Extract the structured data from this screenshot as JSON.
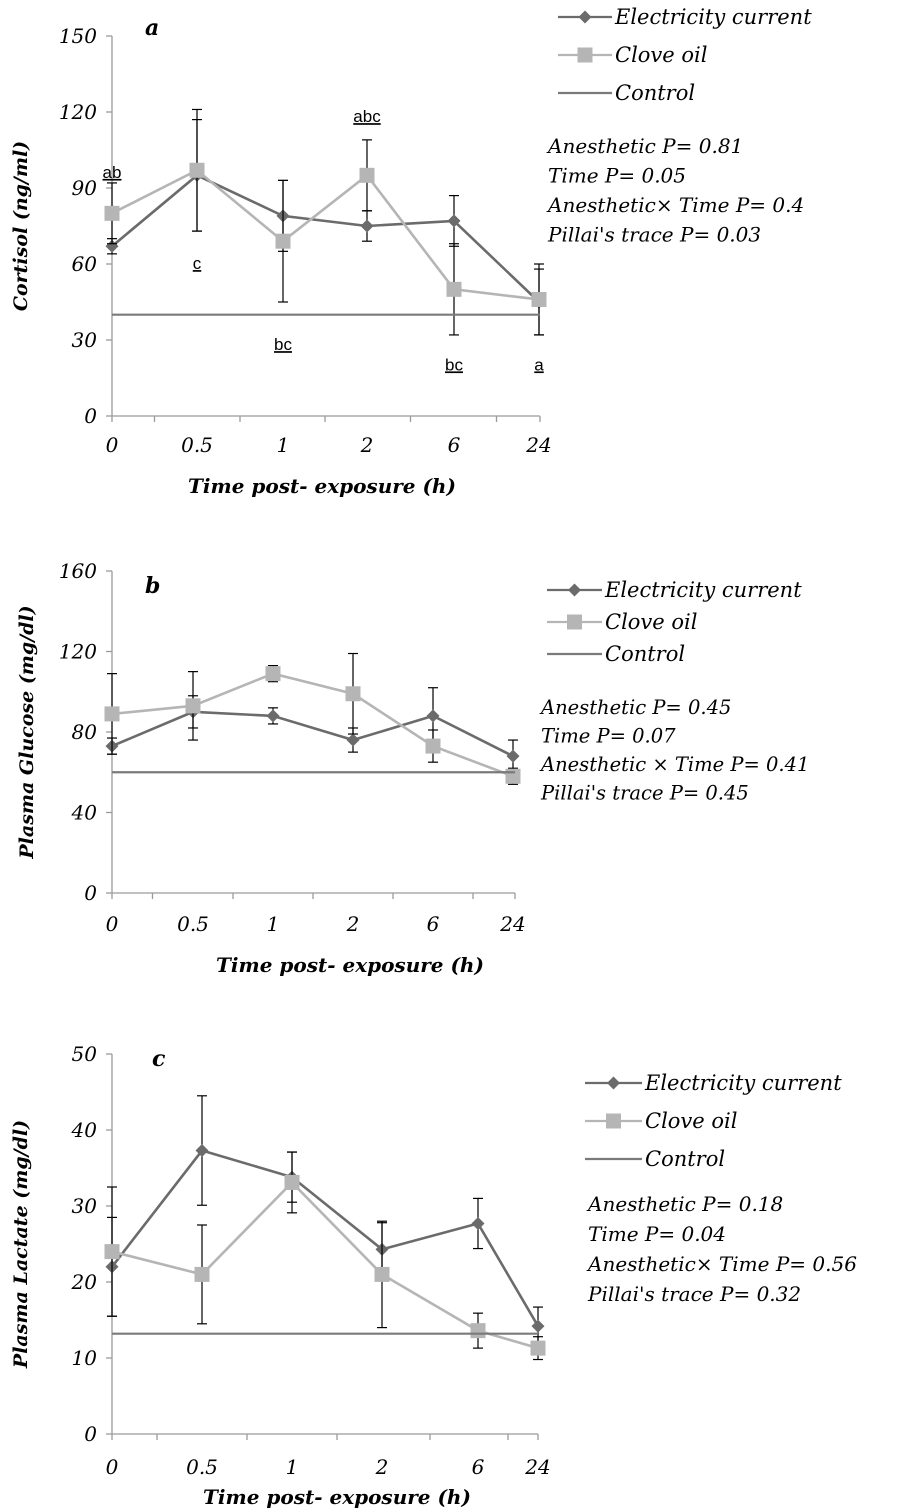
{
  "colors": {
    "electricity": "#6b6b6b",
    "clove": "#b5b5b5",
    "control": "#7a7a7a",
    "axis": "#9a9a9a",
    "text": "#000000"
  },
  "x_axis_label": "Time post- exposure (h)",
  "chart_data": [
    {
      "type": "line",
      "panel_letter": "a",
      "ylabel": "Cortisol (ng/ml)",
      "xlabel": "Time post- exposure (h)",
      "categories": [
        "0",
        "0.5",
        "1",
        "2",
        "6",
        "24"
      ],
      "ylim": [
        0,
        150
      ],
      "yticks": [
        0,
        30,
        60,
        90,
        120,
        150
      ],
      "series": [
        {
          "name": "Electricity current",
          "marker": "diamond",
          "values": [
            67,
            95,
            79,
            75,
            77,
            45
          ],
          "error": [
            3,
            22,
            14,
            6,
            10,
            13
          ]
        },
        {
          "name": "Clove oil",
          "marker": "square",
          "values": [
            80,
            97,
            69,
            95,
            50,
            46
          ],
          "error": [
            12,
            24,
            24,
            14,
            18,
            14
          ]
        },
        {
          "name": "Control",
          "marker": "none",
          "constant": 40
        }
      ],
      "letters": [
        {
          "text": "ab",
          "x": "0",
          "y": 94,
          "style": "wavy"
        },
        {
          "text": "c",
          "x": "0.5",
          "y": 58,
          "style": "wavy-green"
        },
        {
          "text": "bc",
          "x": "1",
          "y": 26,
          "style": "wavy"
        },
        {
          "text": "abc",
          "x": "2",
          "y": 116,
          "style": "wavy"
        },
        {
          "text": "bc",
          "x": "6",
          "y": 18,
          "style": "wavy"
        },
        {
          "text": "a",
          "x": "24",
          "y": 18,
          "style": "wavy-green"
        }
      ],
      "stats": [
        "Anesthetic P= 0.81",
        "Time P= 0.05",
        "Anesthetic× Time P= 0.4",
        "Pillai's trace P= 0.03"
      ]
    },
    {
      "type": "line",
      "panel_letter": "b",
      "ylabel": "Plasma Glucose (mg/dl)",
      "xlabel": "Time post- exposure (h)",
      "categories": [
        "0",
        "0.5",
        "1",
        "2",
        "6",
        "24"
      ],
      "ylim": [
        0,
        160
      ],
      "yticks": [
        0,
        40,
        80,
        120,
        160
      ],
      "series": [
        {
          "name": "Electricity current",
          "marker": "diamond",
          "values": [
            73,
            90,
            88,
            76,
            88,
            68
          ],
          "error": [
            4,
            8,
            4,
            6,
            14,
            8
          ]
        },
        {
          "name": "Clove oil",
          "marker": "square",
          "values": [
            89,
            93,
            109,
            99,
            73,
            58
          ],
          "error": [
            20,
            17,
            4,
            20,
            8,
            4
          ]
        },
        {
          "name": "Control",
          "marker": "none",
          "constant": 60
        }
      ],
      "stats": [
        "Anesthetic P= 0.45",
        "Time P= 0.07",
        "Anesthetic × Time P= 0.41",
        "Pillai's trace P= 0.45"
      ]
    },
    {
      "type": "line",
      "panel_letter": "c",
      "ylabel": "Plasma Lactate (mg/dl)",
      "xlabel": "Time post- exposure (h)",
      "categories": [
        "0",
        "0.5",
        "1",
        "2",
        "6",
        "24"
      ],
      "ylim": [
        0,
        50
      ],
      "yticks": [
        0,
        10,
        20,
        30,
        40,
        50
      ],
      "series": [
        {
          "name": "Electricity current",
          "marker": "diamond",
          "values": [
            22,
            37.3,
            33.8,
            24.3,
            27.7,
            14.2
          ],
          "error": [
            6.5,
            7.2,
            3.3,
            3.5,
            3.3,
            2.5
          ]
        },
        {
          "name": "Clove oil",
          "marker": "square",
          "values": [
            24,
            21,
            33.1,
            21,
            13.6,
            11.3
          ],
          "error": [
            8.5,
            6.5,
            4,
            7,
            2.3,
            1.5
          ]
        },
        {
          "name": "Control",
          "marker": "none",
          "constant": 13.2
        }
      ],
      "stats": [
        "Anesthetic P= 0.18",
        "Time P= 0.04",
        "Anesthetic× Time P= 0.56",
        "Pillai's trace P= 0.32"
      ]
    }
  ]
}
